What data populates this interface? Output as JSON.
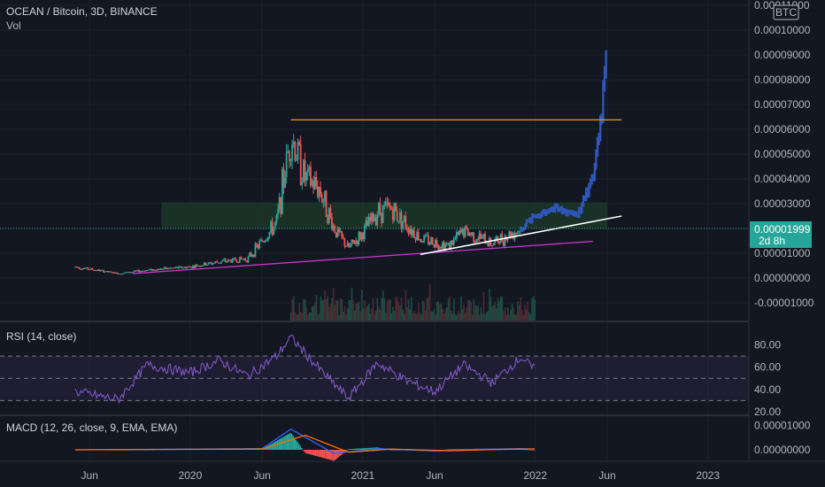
{
  "title": "OCEAN / Bitcoin, 3D, BINANCE",
  "volume_label": "Vol",
  "currency_badge": "BTC",
  "last_price": {
    "value": "0.00001999",
    "countdown": "2d 8h"
  },
  "colors": {
    "background": "#131722",
    "up": "#26a69a",
    "down": "#ef5350",
    "projection": "#2f56b8",
    "resistance": "#f7931a",
    "support_purple": "#c736c7",
    "support_white": "#ffffff",
    "zone": "#1f3a2a",
    "rsi_line": "#7e57c2",
    "macd_line": "#2962ff",
    "signal_line": "#ff6d00",
    "price_tag": "#26a69a"
  },
  "chart_data": [
    {
      "type": "candlestick",
      "title": "OCEAN / Bitcoin, 3D, BINANCE",
      "y_ticks": [
        "0.00011000",
        "0.00010000",
        "0.00009000",
        "0.00008000",
        "0.00007000",
        "0.00006000",
        "0.00005000",
        "0.00004000",
        "0.00003000",
        "0.00002000",
        "0.00001000",
        "0.00000000",
        "-0.00001000"
      ],
      "ylim": [
        -1e-05,
        0.00011
      ],
      "x_ticks": [
        "Jun",
        "2020",
        "Jun",
        "2021",
        "Jun",
        "2022",
        "Jun",
        "2023"
      ],
      "series_close": [
        {
          "x": "2019-05",
          "y": 4.5e-06
        },
        {
          "x": "2019-08",
          "y": 1.8e-06
        },
        {
          "x": "2019-10",
          "y": 3.2e-06
        },
        {
          "x": "2020-01",
          "y": 4.5e-06
        },
        {
          "x": "2020-03",
          "y": 6.5e-06
        },
        {
          "x": "2020-05",
          "y": 7.8e-06
        },
        {
          "x": "2020-07",
          "y": 2.2e-05
        },
        {
          "x": "2020-08",
          "y": 5.8e-05
        },
        {
          "x": "2020-09",
          "y": 4e-05
        },
        {
          "x": "2020-10",
          "y": 3.6e-05
        },
        {
          "x": "2020-11",
          "y": 2e-05
        },
        {
          "x": "2020-12",
          "y": 1.2e-05
        },
        {
          "x": "2021-01",
          "y": 1.8e-05
        },
        {
          "x": "2021-02",
          "y": 2.7e-05
        },
        {
          "x": "2021-03",
          "y": 2.8e-05
        },
        {
          "x": "2021-04",
          "y": 2.2e-05
        },
        {
          "x": "2021-05",
          "y": 1.6e-05
        },
        {
          "x": "2021-07",
          "y": 1.3e-05
        },
        {
          "x": "2021-08",
          "y": 1.9e-05
        },
        {
          "x": "2021-10",
          "y": 1.4e-05
        },
        {
          "x": "2021-12",
          "y": 2e-05
        }
      ],
      "projection_close": [
        {
          "x": "2021-12",
          "y": 2e-05
        },
        {
          "x": "2022-01",
          "y": 2.5e-05
        },
        {
          "x": "2022-02",
          "y": 2.8e-05
        },
        {
          "x": "2022-03",
          "y": 2.7e-05
        },
        {
          "x": "2022-04",
          "y": 2.6e-05
        },
        {
          "x": "2022-05",
          "y": 4e-05
        },
        {
          "x": "2022-05-20",
          "y": 6.8e-05
        },
        {
          "x": "2022-06",
          "y": 0.0001
        }
      ],
      "levels": [
        {
          "name": "resistance",
          "from": "2020-08",
          "to": "2022-07",
          "y": 6.38e-05
        },
        {
          "name": "zone_top",
          "from": "2019-11",
          "to": "2022-06",
          "y": 3.05e-05
        },
        {
          "name": "zone_bottom",
          "from": "2019-11",
          "to": "2022-06",
          "y": 1.98e-05
        }
      ],
      "trendlines": [
        {
          "name": "purple_support",
          "from": {
            "x": "2019-09",
            "y": 1.8e-06
          },
          "to": {
            "x": "2022-05",
            "y": 1.48e-05
          }
        },
        {
          "name": "white_support",
          "from": {
            "x": "2021-05",
            "y": 9.5e-06
          },
          "to": {
            "x": "2022-07",
            "y": 2.5e-05
          }
        }
      ]
    },
    {
      "type": "line",
      "title": "RSI (14, close)",
      "y_ticks": [
        "80.00",
        "60.00",
        "40.00",
        "20.00"
      ],
      "ylim": [
        20,
        90
      ],
      "bands": [
        70,
        50,
        30
      ],
      "values": [
        {
          "x": "2019-05",
          "y": 38
        },
        {
          "x": "2019-08",
          "y": 31
        },
        {
          "x": "2019-10",
          "y": 62
        },
        {
          "x": "2020-01",
          "y": 55
        },
        {
          "x": "2020-03",
          "y": 66
        },
        {
          "x": "2020-05",
          "y": 52
        },
        {
          "x": "2020-07",
          "y": 70
        },
        {
          "x": "2020-08",
          "y": 87
        },
        {
          "x": "2020-10",
          "y": 58
        },
        {
          "x": "2020-12",
          "y": 32
        },
        {
          "x": "2021-02",
          "y": 64
        },
        {
          "x": "2021-04",
          "y": 48
        },
        {
          "x": "2021-06",
          "y": 38
        },
        {
          "x": "2021-08",
          "y": 62
        },
        {
          "x": "2021-10",
          "y": 46
        },
        {
          "x": "2021-12",
          "y": 69
        },
        {
          "x": "2022-01",
          "y": 57
        }
      ]
    },
    {
      "type": "line",
      "title": "MACD (12, 26, close, 9, EMA, EMA)",
      "y_ticks": [
        "0.00001000",
        "0.00000000"
      ],
      "ylim": [
        -4e-06,
        1.2e-05
      ],
      "series": [
        {
          "name": "MACD",
          "values": [
            {
              "x": "2019-05",
              "y": 0.0
            },
            {
              "x": "2020-06",
              "y": 5e-07
            },
            {
              "x": "2020-08",
              "y": 8.5e-06
            },
            {
              "x": "2020-11",
              "y": -1.5e-06
            },
            {
              "x": "2021-02",
              "y": 5e-07
            },
            {
              "x": "2021-06",
              "y": -5e-07
            },
            {
              "x": "2021-09",
              "y": 2e-07
            },
            {
              "x": "2021-12",
              "y": 5e-07
            },
            {
              "x": "2022-01",
              "y": 3e-07
            }
          ]
        },
        {
          "name": "Signal",
          "values": [
            {
              "x": "2019-05",
              "y": 0.0
            },
            {
              "x": "2020-06",
              "y": 3e-07
            },
            {
              "x": "2020-09",
              "y": 6e-06
            },
            {
              "x": "2020-12",
              "y": -1e-06
            },
            {
              "x": "2021-03",
              "y": 3e-07
            },
            {
              "x": "2021-07",
              "y": -4e-07
            },
            {
              "x": "2021-10",
              "y": 1e-07
            },
            {
              "x": "2022-01",
              "y": 4e-07
            }
          ]
        }
      ]
    }
  ]
}
